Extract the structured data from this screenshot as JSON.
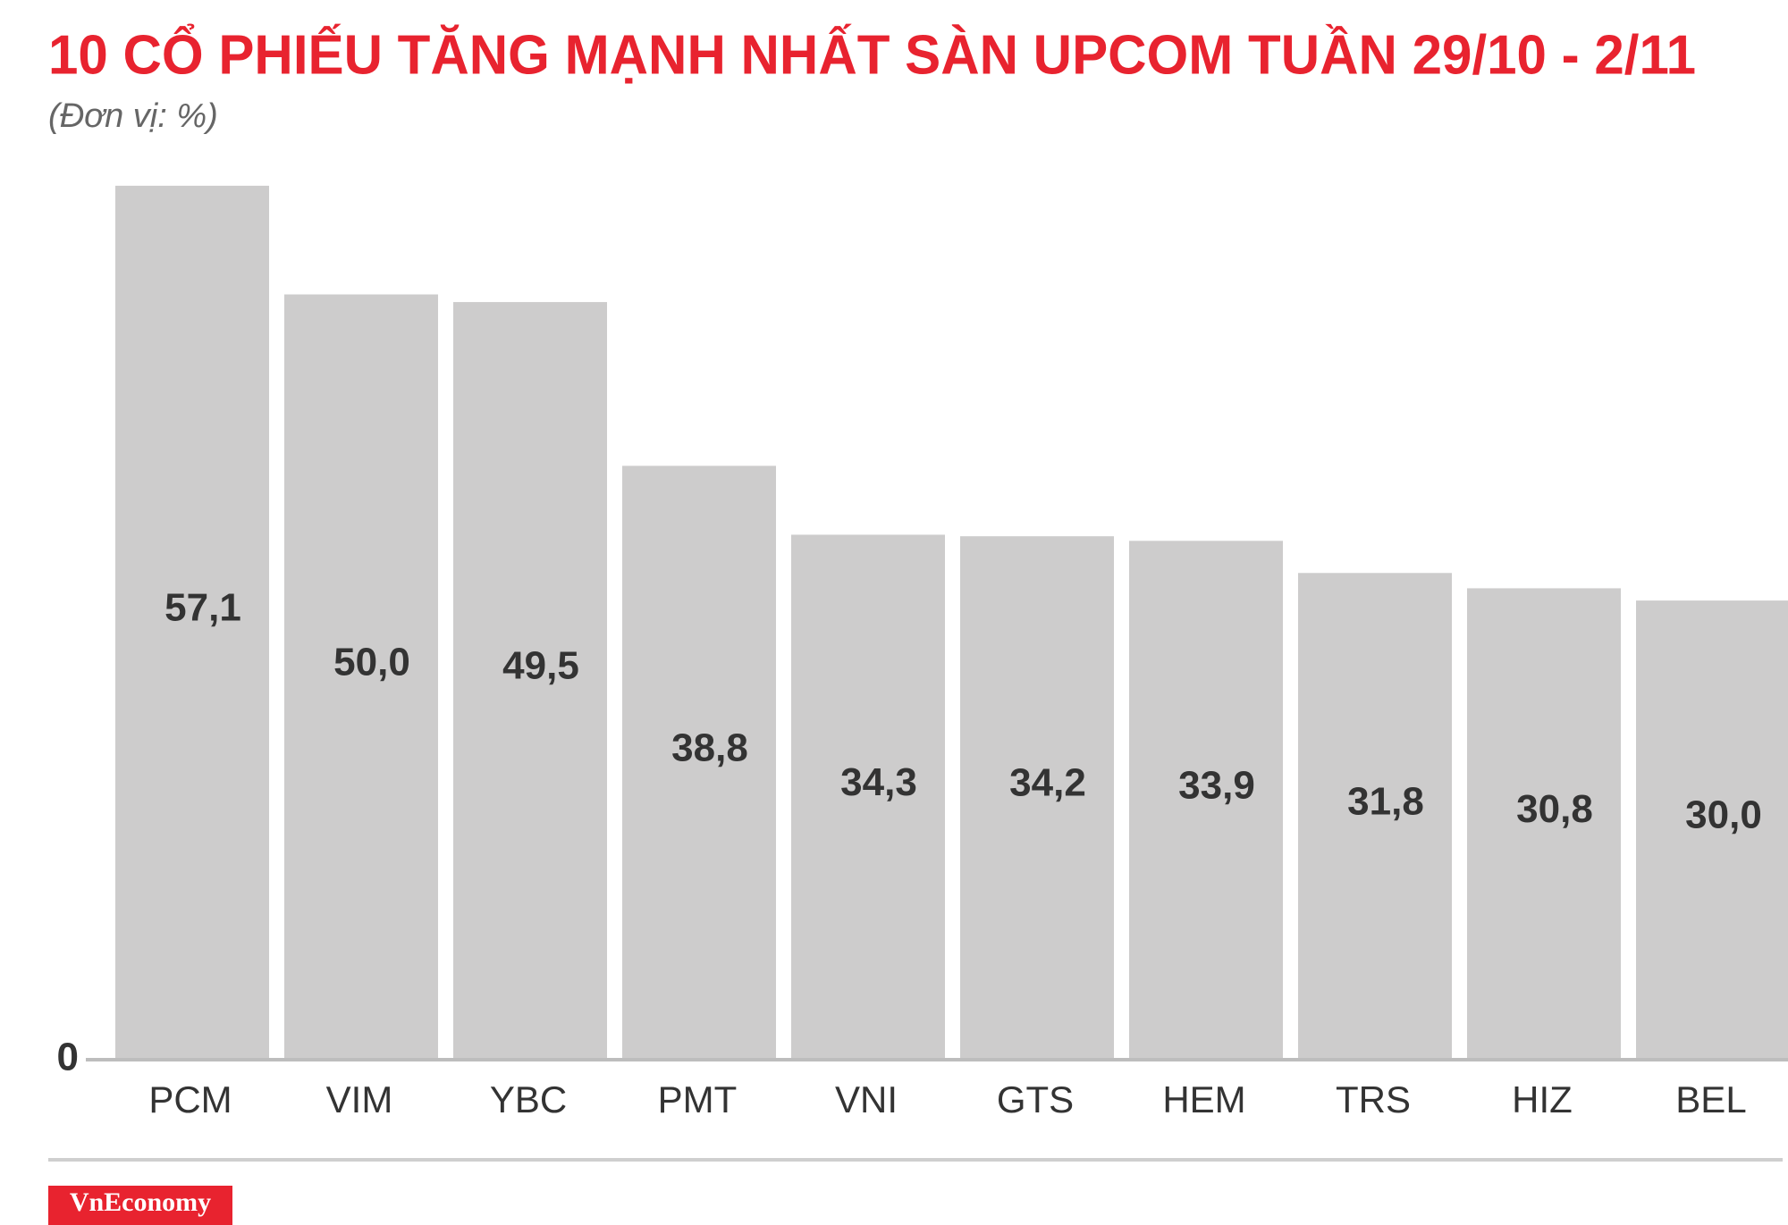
{
  "chart_data": {
    "type": "bar",
    "title": "10 CỔ PHIẾU TĂNG MẠNH NHẤT SÀN UPCOM TUẦN 29/10 - 2/11",
    "subtitle": "(Đơn vị: %)",
    "categories": [
      "PCM",
      "VIM",
      "YBC",
      "PMT",
      "VNI",
      "GTS",
      "HEM",
      "TRS",
      "HIZ",
      "BEL"
    ],
    "values": [
      57.1,
      50.0,
      49.5,
      38.8,
      34.3,
      34.2,
      33.9,
      31.8,
      30.8,
      30.0
    ],
    "value_labels": [
      "57,1",
      "50,0",
      "49,5",
      "38,8",
      "34,3",
      "34,2",
      "33,9",
      "31,8",
      "30,8",
      "30,0"
    ],
    "color": "#cdcccc",
    "ylim": [
      0,
      60
    ],
    "yticks": [
      0
    ],
    "logo_text": "VnEconomy"
  }
}
